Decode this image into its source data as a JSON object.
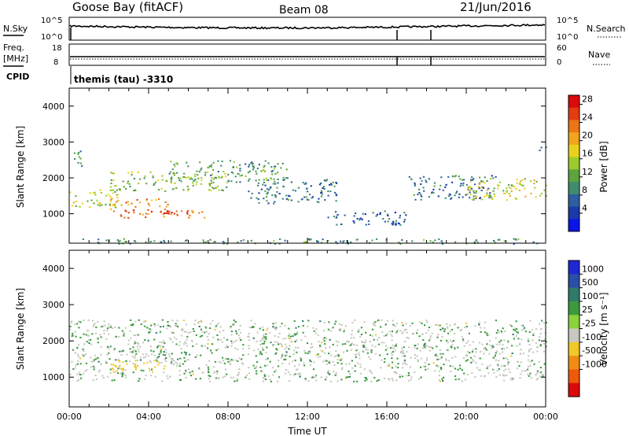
{
  "header": {
    "station": "Goose Bay (fitACF)",
    "beam": "Beam 08",
    "date": "21/Jun/2016"
  },
  "top_panels": {
    "nsky_label": "N.Sky",
    "nsky_ticks": [
      "10^5",
      "10^0"
    ],
    "nsearch_label": "N.Search",
    "nsearch_ticks": [
      "10^5",
      "10^0"
    ],
    "freq_label_line1": "Freq.",
    "freq_label_line2": "[MHz]",
    "freq_ticks": [
      "18",
      "8"
    ],
    "nave_label": "Nave",
    "nave_ticks": [
      "60",
      "0"
    ],
    "cpid_label": "CPID",
    "cpid_text": "themis (tau) -3310"
  },
  "chart_data": [
    {
      "type": "heatmap",
      "title": "",
      "parameter": "Power",
      "ylabel": "Slant Range [km]",
      "xlabel": "Time UT",
      "ylim": [
        180,
        4500
      ],
      "x_ticks": [
        "00:00",
        "04:00",
        "08:00",
        "12:00",
        "16:00",
        "20:00",
        "00:00"
      ],
      "y_ticks": [
        "1000",
        "2000",
        "3000",
        "4000"
      ],
      "colorbar": {
        "label": "Power [dB]",
        "ticks": [
          "4",
          "8",
          "12",
          "16",
          "20",
          "24",
          "28"
        ],
        "colors": [
          "#0a14e6",
          "#1a3aa8",
          "#2d5fa0",
          "#3f8d6e",
          "#5fa33f",
          "#9bcc2c",
          "#e8d21e",
          "#f0a51e",
          "#ec7516",
          "#e43b10",
          "#dc0a0a"
        ]
      },
      "echo_bands": [
        {
          "t0": 0.0,
          "t1": 2.5,
          "r0": 1200,
          "r1": 1700,
          "value": 16
        },
        {
          "t0": 2.0,
          "t1": 6.8,
          "r0": 900,
          "r1": 1150,
          "value": 24
        },
        {
          "t0": 3.5,
          "t1": 5.5,
          "r0": 950,
          "r1": 1100,
          "value": 28
        },
        {
          "t0": 2.0,
          "t1": 5.0,
          "r0": 1200,
          "r1": 1450,
          "value": 22
        },
        {
          "t0": 2.0,
          "t1": 8.0,
          "r0": 1650,
          "r1": 2200,
          "value": 14
        },
        {
          "t0": 5.0,
          "t1": 11.0,
          "r0": 1900,
          "r1": 2500,
          "value": 11
        },
        {
          "t0": 9.0,
          "t1": 13.5,
          "r0": 1300,
          "r1": 2000,
          "value": 8
        },
        {
          "t0": 13.0,
          "t1": 17.0,
          "r0": 700,
          "r1": 1100,
          "value": 6
        },
        {
          "t0": 17.0,
          "t1": 21.5,
          "r0": 1400,
          "r1": 2100,
          "value": 8
        },
        {
          "t0": 20.0,
          "t1": 24.0,
          "r0": 1400,
          "r1": 2000,
          "value": 16
        },
        {
          "t0": 0.0,
          "t1": 0.6,
          "r0": 2300,
          "r1": 2800,
          "value": 10
        },
        {
          "t0": 23.6,
          "t1": 24.0,
          "r0": 2650,
          "r1": 2900,
          "value": 8
        },
        {
          "t0": 0.5,
          "t1": 24.0,
          "r0": 180,
          "r1": 320,
          "value": 10
        }
      ]
    },
    {
      "type": "heatmap",
      "title": "",
      "parameter": "Velocity",
      "ylabel": "Slant Range [km]",
      "xlabel": "Time UT",
      "ylim": [
        180,
        4500
      ],
      "x_ticks": [
        "00:00",
        "04:00",
        "08:00",
        "12:00",
        "16:00",
        "20:00",
        "00:00"
      ],
      "y_ticks": [
        "1000",
        "2000",
        "3000",
        "4000"
      ],
      "colorbar": {
        "label": "Velocity [m s⁻¹]",
        "ticks": [
          "1000",
          "500",
          "100",
          "25",
          "-25",
          "-100",
          "-500",
          "-1000"
        ],
        "colors": [
          "#1e28d2",
          "#2a4fa6",
          "#2f7a6a",
          "#3c9a3c",
          "#8cd23c",
          "#c8c8c0",
          "#f0c828",
          "#f08c14",
          "#ec5a0a",
          "#dc0a0a"
        ]
      },
      "ground_scatter_color": "#c8c8c0",
      "echo_bands": [
        {
          "t0": 0.0,
          "t1": 24.0,
          "r0": 900,
          "r1": 2600,
          "value": 0
        },
        {
          "t0": 2.0,
          "t1": 5.0,
          "r0": 1150,
          "r1": 1500,
          "value": -300
        },
        {
          "t0": 2.5,
          "t1": 6.0,
          "r0": 1500,
          "r1": 1750,
          "value": 60
        }
      ]
    }
  ]
}
